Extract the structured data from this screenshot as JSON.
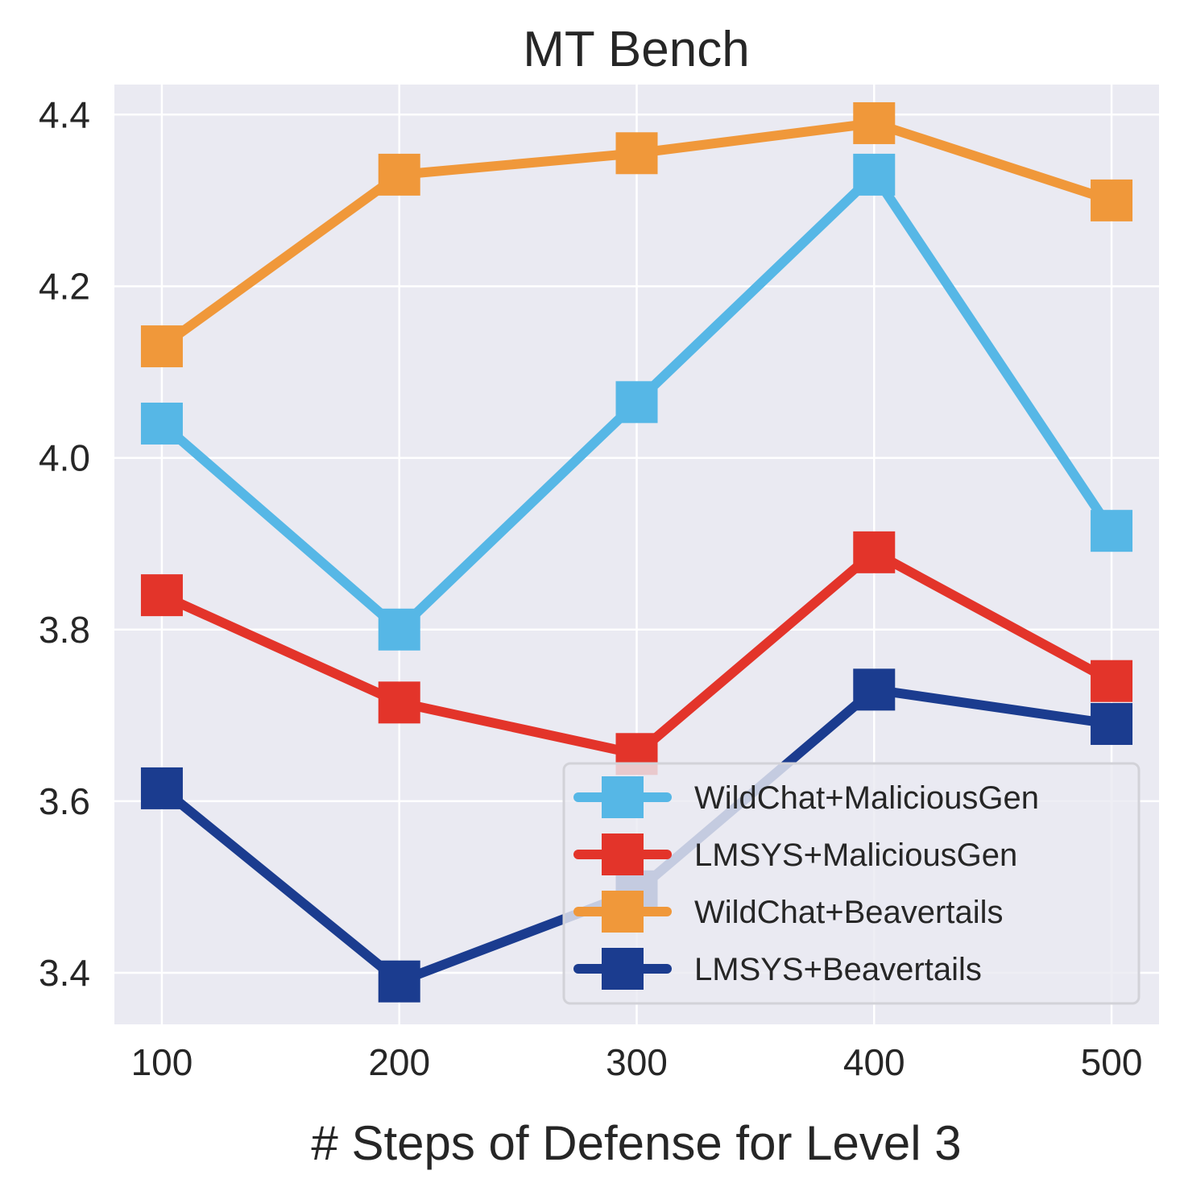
{
  "chart_data": {
    "type": "line",
    "title": "MT Bench",
    "xlabel": "# Steps of Defense for Level 3",
    "ylabel": "",
    "x": [
      100,
      200,
      300,
      400,
      500
    ],
    "xlim": [
      80,
      520
    ],
    "ylim": [
      3.34,
      4.435
    ],
    "xticks": [
      100,
      200,
      300,
      400,
      500
    ],
    "yticks": [
      3.4,
      3.6,
      3.8,
      4.0,
      4.2,
      4.4
    ],
    "ytick_labels": [
      "3.4",
      "3.6",
      "3.8",
      "4.0",
      "4.2",
      "4.4"
    ],
    "grid": true,
    "legend_position": "lower-right",
    "series": [
      {
        "name": "WildChat+MaliciousGen",
        "color": "#56b7e6",
        "values": [
          4.04,
          3.8,
          4.065,
          4.33,
          3.915
        ]
      },
      {
        "name": "LMSYS+MaliciousGen",
        "color": "#e3342a",
        "values": [
          3.84,
          3.715,
          3.655,
          3.89,
          3.74
        ]
      },
      {
        "name": "WildChat+Beavertails",
        "color": "#f0983a",
        "values": [
          4.13,
          4.33,
          4.355,
          4.39,
          4.3
        ]
      },
      {
        "name": "LMSYS+Beavertails",
        "color": "#1b3c8f",
        "values": [
          3.615,
          3.39,
          3.495,
          3.73,
          3.69
        ]
      }
    ]
  }
}
